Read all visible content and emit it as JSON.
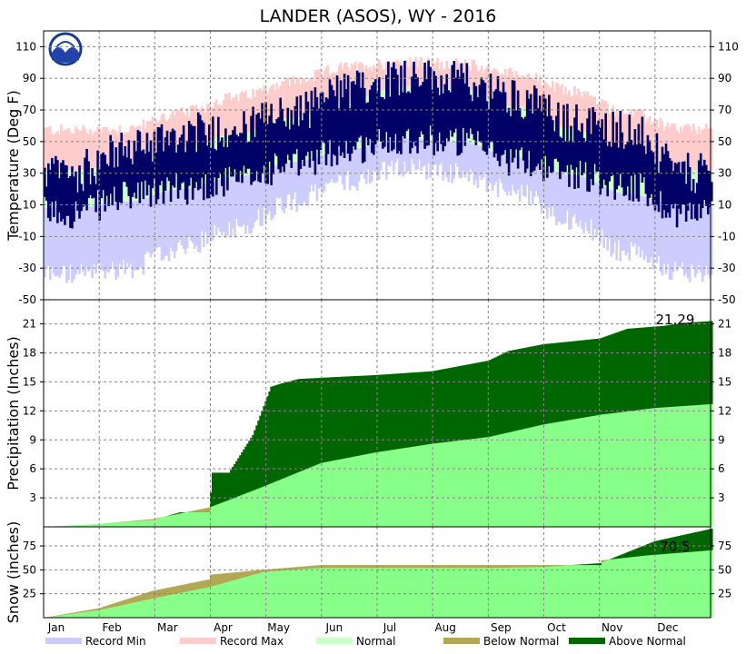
{
  "title": "LANDER (ASOS), WY - 2016",
  "logo_text": "NOAA",
  "months": [
    "Jan",
    "Feb",
    "Mar",
    "Apr",
    "May",
    "Jun",
    "Jul",
    "Aug",
    "Sep",
    "Oct",
    "Nov",
    "Dec"
  ],
  "legend": [
    {
      "label": "Record Min",
      "color": "#ccccff"
    },
    {
      "label": "Record Max",
      "color": "#ffcccc"
    },
    {
      "label": "Normal",
      "color": "#ccffcc"
    },
    {
      "label": "Below Normal",
      "color": "#b0a855"
    },
    {
      "label": "Above Normal",
      "color": "#006600"
    }
  ],
  "chart_data": [
    {
      "type": "area",
      "panel": "temperature",
      "ylabel": "Temperature (Deg F)",
      "ylim": [
        -50,
        120
      ],
      "yticks": [
        -50,
        -30,
        -10,
        10,
        30,
        50,
        70,
        90,
        110
      ],
      "grid": true,
      "series": [
        {
          "name": "Record Max",
          "color": "#ffcccc",
          "monthly_approx": [
            57,
            58,
            68,
            78,
            88,
            97,
            100,
            99,
            93,
            82,
            68,
            58
          ]
        },
        {
          "name": "Normal",
          "color": "#ccffcc",
          "normal_high": [
            32,
            36,
            46,
            55,
            65,
            76,
            85,
            83,
            72,
            58,
            42,
            32
          ],
          "normal_low": [
            8,
            12,
            20,
            28,
            37,
            45,
            52,
            50,
            40,
            29,
            17,
            9
          ]
        },
        {
          "name": "Record Min",
          "color": "#ccccff",
          "monthly_approx": [
            -34,
            -30,
            -18,
            -4,
            12,
            25,
            34,
            30,
            18,
            0,
            -20,
            -32
          ]
        },
        {
          "name": "Observed",
          "color": "#000066",
          "monthly_high_approx": [
            30,
            45,
            55,
            58,
            68,
            82,
            92,
            88,
            78,
            62,
            58,
            30
          ],
          "monthly_low_approx": [
            5,
            15,
            20,
            25,
            35,
            45,
            52,
            50,
            38,
            30,
            22,
            5
          ]
        }
      ]
    },
    {
      "type": "area",
      "panel": "precipitation",
      "ylabel": "Precipitation (Inches)",
      "ylim": [
        0,
        23.5
      ],
      "yticks": [
        3,
        6,
        9,
        12,
        15,
        18,
        21
      ],
      "grid": true,
      "annotation": "21.29",
      "series": [
        {
          "name": "Normal",
          "color": "#88ff88",
          "x_day": [
            1,
            31,
            60,
            91,
            121,
            152,
            182,
            213,
            244,
            274,
            305,
            335,
            366
          ],
          "values": [
            0,
            0.3,
            0.8,
            2.0,
            4.2,
            6.6,
            7.7,
            8.6,
            9.3,
            10.6,
            11.6,
            12.3,
            12.7
          ]
        },
        {
          "name": "Observed",
          "color": "#006600",
          "x_day": [
            1,
            31,
            45,
            60,
            75,
            91,
            93,
            102,
            115,
            125,
            130,
            140,
            160,
            182,
            213,
            244,
            255,
            274,
            290,
            305,
            320,
            340,
            350,
            366
          ],
          "values": [
            0,
            0.3,
            0.5,
            0.7,
            1.5,
            1.5,
            5.6,
            5.6,
            9.5,
            14.5,
            14.8,
            15.3,
            15.5,
            15.7,
            16.1,
            17.2,
            18.2,
            18.9,
            19.2,
            19.5,
            20.5,
            20.8,
            21.1,
            21.29
          ]
        }
      ]
    },
    {
      "type": "area",
      "panel": "snow",
      "ylabel": "Snow (inches)",
      "ylim": [
        0,
        95
      ],
      "yticks": [
        25,
        50,
        75
      ],
      "grid": true,
      "annotation": "70.5",
      "series": [
        {
          "name": "Normal",
          "color": "#88ff88",
          "x_day": [
            1,
            31,
            60,
            91,
            121,
            152,
            182,
            213,
            244,
            274,
            305,
            335,
            366
          ],
          "values": [
            0,
            8,
            20,
            32,
            48,
            52,
            52,
            52,
            52,
            53,
            57,
            80,
            93
          ]
        },
        {
          "name": "Observed",
          "color": "#b0a855",
          "x_day": [
            1,
            31,
            60,
            91,
            92,
            120,
            152,
            182,
            213,
            244,
            274,
            305,
            306,
            330,
            366
          ],
          "values": [
            0,
            10,
            28,
            40,
            45,
            50,
            55,
            55,
            55,
            55,
            55,
            55,
            60,
            65,
            70.5
          ]
        }
      ]
    }
  ]
}
